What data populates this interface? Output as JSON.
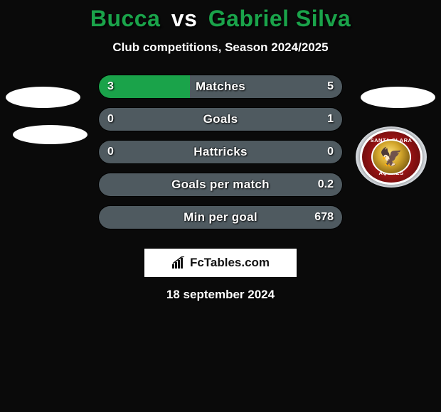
{
  "title_player1": "Bucca",
  "title_vs": "vs",
  "title_player2": "Gabriel Silva",
  "subtitle": "Club competitions, Season 2024/2025",
  "colors": {
    "title_player": "#1aa34a",
    "title_vs": "#ffffff",
    "bar_left": "#1aa34a",
    "bar_right": "#4f5a60",
    "bar_neutral": "#4f5a60",
    "background": "#0a0a0a",
    "footer_bg": "#ffffff"
  },
  "rows": [
    {
      "label": "Matches",
      "left_val": "3",
      "right_val": "5",
      "left_pct": 37.5,
      "right_pct": 62.5,
      "left_color": "#1aa34a",
      "right_color": "#4f5a60"
    },
    {
      "label": "Goals",
      "left_val": "0",
      "right_val": "1",
      "left_pct": 0,
      "right_pct": 100,
      "left_color": "#1aa34a",
      "right_color": "#4f5a60"
    },
    {
      "label": "Hattricks",
      "left_val": "0",
      "right_val": "0",
      "left_pct": 50,
      "right_pct": 50,
      "left_color": "#4f5a60",
      "right_color": "#4f5a60"
    },
    {
      "label": "Goals per match",
      "left_val": "",
      "right_val": "0.2",
      "left_pct": 0,
      "right_pct": 100,
      "left_color": "#1aa34a",
      "right_color": "#4f5a60"
    },
    {
      "label": "Min per goal",
      "left_val": "",
      "right_val": "678",
      "left_pct": 0,
      "right_pct": 100,
      "left_color": "#1aa34a",
      "right_color": "#4f5a60"
    }
  ],
  "club": {
    "top_text": "SANTA CLARA",
    "bottom_text": "AÇORES"
  },
  "footer_brand": "FcTables.com",
  "date": "18 september 2024"
}
